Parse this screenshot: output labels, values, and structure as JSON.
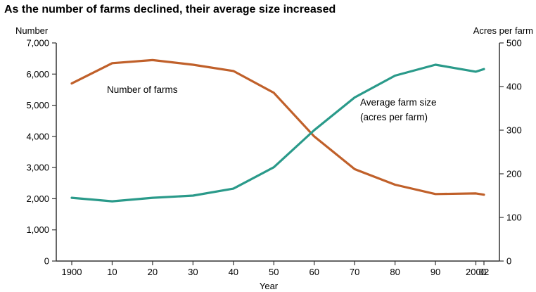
{
  "chart_data": {
    "type": "line",
    "title": "As the number of farms declined, their average size increased",
    "xlabel": "Year",
    "ylabel_left": "Number",
    "ylabel_right": "Acres per farm",
    "x": [
      1900,
      1910,
      1920,
      1930,
      1940,
      1950,
      1960,
      1970,
      1980,
      1990,
      2000,
      2002
    ],
    "xtick_labels": [
      "1900",
      "10",
      "20",
      "30",
      "40",
      "50",
      "60",
      "70",
      "80",
      "90",
      "2000",
      "02"
    ],
    "ylim_left": [
      0,
      7000
    ],
    "ylim_right": [
      0,
      500
    ],
    "yticks_left": [
      "0",
      "1,000",
      "2,000",
      "3,000",
      "4,000",
      "5,000",
      "6,000",
      "7,000"
    ],
    "yticks_right": [
      "0",
      "100",
      "200",
      "300",
      "400",
      "500"
    ],
    "grid": false,
    "series": [
      {
        "name": "Number of farms",
        "axis": "left",
        "color": "#c0602a",
        "values": [
          5700,
          6350,
          6450,
          6300,
          6100,
          5400,
          4000,
          2950,
          2450,
          2150,
          2170,
          2130
        ]
      },
      {
        "name": "Average farm size (acres per farm)",
        "name_lines": [
          "Average farm size",
          "(acres per farm)"
        ],
        "axis": "right",
        "color": "#2a9a8a",
        "values": [
          145,
          137,
          145,
          150,
          166,
          215,
          300,
          375,
          425,
          450,
          434,
          440
        ]
      }
    ]
  }
}
